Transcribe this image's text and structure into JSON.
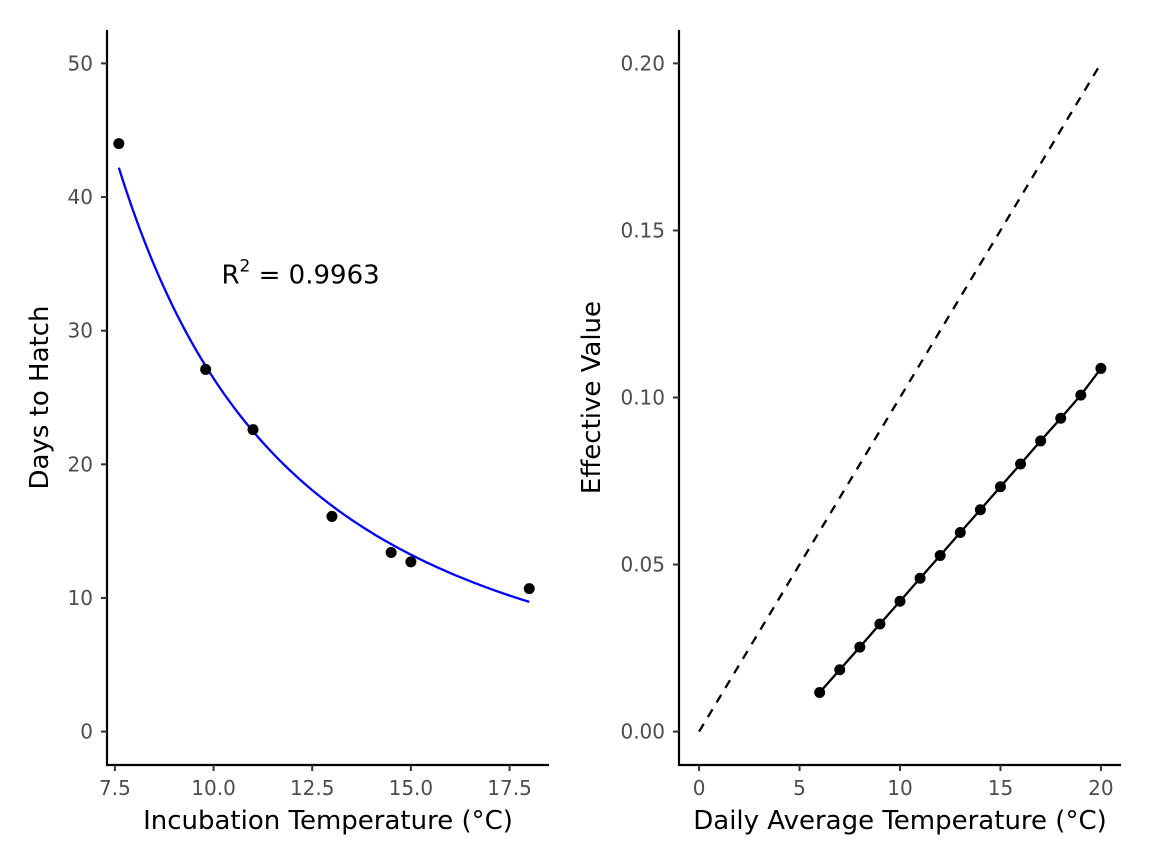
{
  "colors": {
    "point": "#000000",
    "fit_line": "#0000ff",
    "line": "#000000",
    "dashed": "#000000"
  },
  "chart_data": [
    {
      "type": "scatter",
      "xlabel": "Incubation Temperature (°C)",
      "ylabel": "Days to Hatch",
      "xlim": [
        7.3,
        18.5
      ],
      "ylim": [
        -2.5,
        52.5
      ],
      "x_ticks": [
        7.5,
        10.0,
        12.5,
        15.0,
        17.5
      ],
      "x_tick_labels": [
        "7.5",
        "10.0",
        "12.5",
        "15.0",
        "17.5"
      ],
      "y_ticks": [
        0,
        10,
        20,
        30,
        40,
        50
      ],
      "y_tick_labels": [
        "0",
        "10",
        "20",
        "30",
        "40",
        "50"
      ],
      "grid": false,
      "points": {
        "x": [
          7.6,
          9.8,
          11.0,
          13.0,
          14.5,
          15.0,
          18.0
        ],
        "y": [
          44.0,
          27.1,
          22.6,
          16.1,
          13.4,
          12.7,
          10.7
        ]
      },
      "fit": {
        "model": "power",
        "x_range": [
          7.6,
          18.0
        ],
        "x": [
          7.6,
          8.0,
          8.5,
          9.0,
          9.5,
          10.0,
          10.5,
          11.0,
          11.5,
          12.0,
          12.5,
          13.0,
          13.5,
          14.0,
          14.5,
          15.0,
          15.5,
          16.0,
          16.5,
          17.0,
          17.5,
          18.0
        ],
        "y": [
          44.0,
          39.9,
          35.5,
          31.8,
          28.7,
          26.0,
          23.7,
          21.7,
          19.9,
          18.4,
          17.0,
          15.8,
          14.7,
          13.7,
          12.8,
          12.1,
          11.3,
          10.7,
          10.1,
          9.5,
          9.0,
          10.6
        ]
      },
      "annotation": {
        "prefix": "R",
        "superscript": "2",
        "equals": " = ",
        "value": "0.9963",
        "x": 10.2,
        "y": 34.2
      }
    },
    {
      "type": "line",
      "xlabel": "Daily Average Temperature (°C)",
      "ylabel": "Effective Value",
      "xlim": [
        -1.0,
        21.0
      ],
      "ylim": [
        -0.01,
        0.21
      ],
      "x_ticks": [
        0,
        5,
        10,
        15,
        20
      ],
      "x_tick_labels": [
        "0",
        "5",
        "10",
        "15",
        "20"
      ],
      "y_ticks": [
        0.0,
        0.05,
        0.1,
        0.15,
        0.2
      ],
      "y_tick_labels": [
        "0.00",
        "0.05",
        "0.10",
        "0.15",
        "0.20"
      ],
      "grid": false,
      "series": [
        {
          "style": "dashed",
          "x": [
            0,
            20
          ],
          "y": [
            0.0,
            0.2
          ]
        },
        {
          "style": "solid-with-points",
          "x": [
            6,
            7,
            8,
            9,
            10,
            11,
            12,
            13,
            14,
            15,
            16,
            17,
            18,
            19,
            20
          ],
          "y": [
            0.0117,
            0.0185,
            0.0253,
            0.0322,
            0.039,
            0.0459,
            0.0527,
            0.0596,
            0.0664,
            0.0733,
            0.0801,
            0.087,
            0.0938,
            0.1007,
            0.1087
          ]
        }
      ]
    }
  ]
}
